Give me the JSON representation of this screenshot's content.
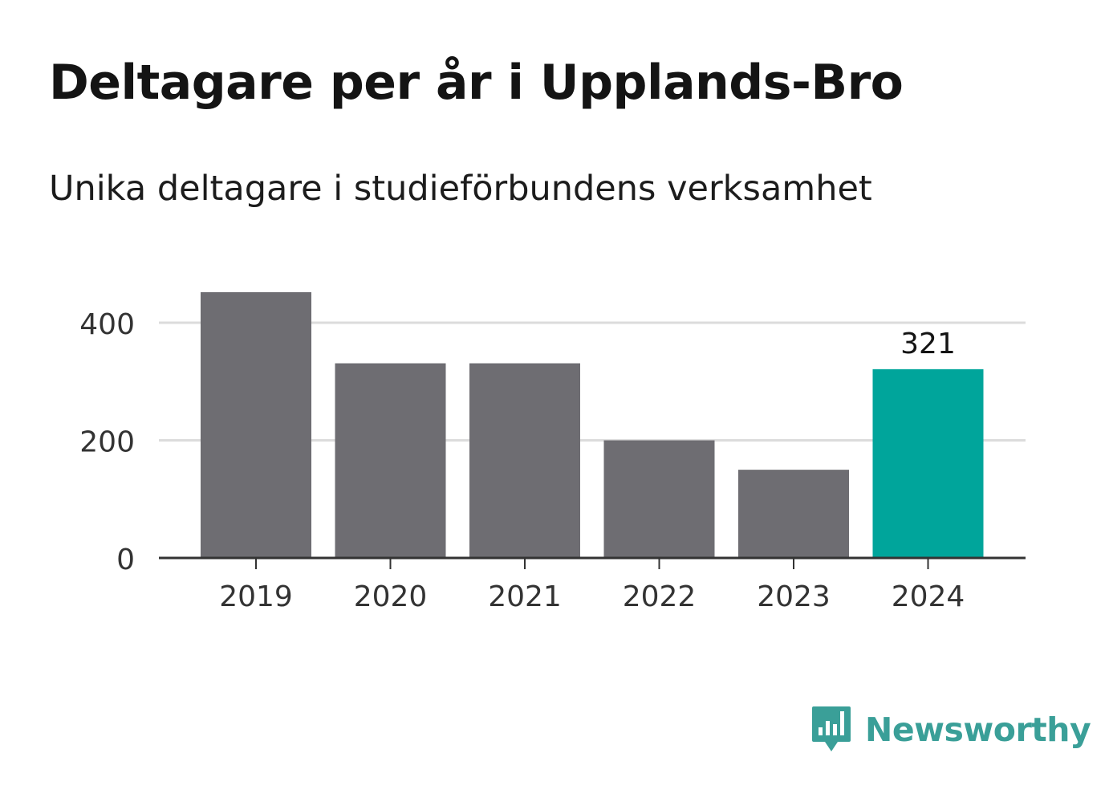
{
  "title": "Deltagare per år i Upplands-Bro",
  "subtitle": "Unika deltagare i studieförbundens verksamhet",
  "chart_data": {
    "type": "bar",
    "categories": [
      "2019",
      "2020",
      "2021",
      "2022",
      "2023",
      "2024"
    ],
    "values": [
      452,
      331,
      331,
      200,
      150,
      321
    ],
    "ylim": [
      0,
      400
    ],
    "yticks": [
      0,
      200,
      400
    ],
    "grid": true,
    "highlight_index": 5,
    "data_labels": [
      {
        "index": 5,
        "text": "321"
      }
    ],
    "colors": {
      "default_bar": "#6e6d72",
      "highlight_bar": "#00a59b",
      "grid": "#dcdcdc",
      "axis": "#333333",
      "tick_text": "#333333"
    }
  },
  "brand": {
    "name": "Newsworthy",
    "icon": "newsworthy-logo-icon",
    "color": "#3a9f98"
  }
}
